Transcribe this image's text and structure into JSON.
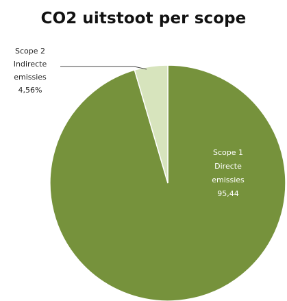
{
  "chart_data": {
    "type": "pie",
    "title": "CO2 uitstoot per scope",
    "slices": [
      {
        "label_lines": [
          "Scope 1",
          "Directe",
          "emissies",
          "95,44"
        ],
        "value": 95.44,
        "color": "#76923c",
        "label_color": "#ffffff"
      },
      {
        "label_lines": [
          "Scope 2",
          "Indirecte",
          "emissies",
          "4,56%"
        ],
        "value": 4.56,
        "color": "#d7e4bd",
        "label_color": "#222222"
      }
    ],
    "start_angle_deg": 0,
    "direction": "clockwise",
    "legend": "none"
  }
}
